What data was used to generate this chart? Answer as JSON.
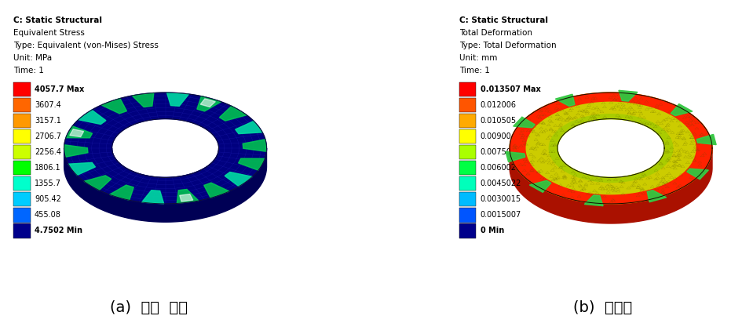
{
  "left_panel": {
    "title_lines": [
      "C: Static Structural",
      "Equivalent Stress",
      "Type: Equivalent (von-Mises) Stress",
      "Unit: MPa",
      "Time: 1"
    ],
    "legend_entries": [
      {
        "label": "4057.7 Max",
        "color": "#FF0000"
      },
      {
        "label": "3607.4",
        "color": "#FF6600"
      },
      {
        "label": "3157.1",
        "color": "#FF9900"
      },
      {
        "label": "2706.7",
        "color": "#FFFF00"
      },
      {
        "label": "2256.4",
        "color": "#CCFF00"
      },
      {
        "label": "1806.1",
        "color": "#00FF00"
      },
      {
        "label": "1355.7",
        "color": "#00FFCC"
      },
      {
        "label": "905.42",
        "color": "#00CCFF"
      },
      {
        "label": "455.08",
        "color": "#0066FF"
      },
      {
        "label": "4.7502 Min",
        "color": "#00008B"
      }
    ],
    "caption": "(a)  응력  분포",
    "bg_color": "#A8C8E8"
  },
  "right_panel": {
    "title_lines": [
      "C: Static Structural",
      "Total Deformation",
      "Type: Total Deformation",
      "Unit: mm",
      "Time: 1"
    ],
    "legend_entries": [
      {
        "label": "0.013507 Max",
        "color": "#FF0000"
      },
      {
        "label": "0.012006",
        "color": "#FF5500"
      },
      {
        "label": "0.010505",
        "color": "#FFAA00"
      },
      {
        "label": "0.0090044",
        "color": "#FFFF00"
      },
      {
        "label": "0.0075036",
        "color": "#AAFF00"
      },
      {
        "label": "0.0060029",
        "color": "#00FF44"
      },
      {
        "label": "0.0045022",
        "color": "#00FFBB"
      },
      {
        "label": "0.0030015",
        "color": "#00BBFF"
      },
      {
        "label": "0.0015007",
        "color": "#0055FF"
      },
      {
        "label": "0 Min",
        "color": "#00008B"
      }
    ],
    "caption": "(b)  변형항",
    "bg_color": "#A8C8E8"
  },
  "figure_bg": "#FFFFFF",
  "panel_border_color": "#888888",
  "title_fontsize": 7.5,
  "legend_fontsize": 7.5,
  "caption_fontsize": 14
}
